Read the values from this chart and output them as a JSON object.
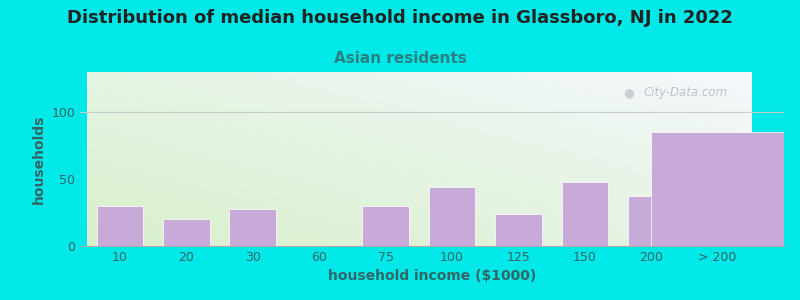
{
  "title": "Distribution of median household income in Glassboro, NJ in 2022",
  "subtitle": "Asian residents",
  "xlabel": "household income ($1000)",
  "ylabel": "households",
  "title_fontsize": 13,
  "subtitle_fontsize": 11,
  "label_fontsize": 10,
  "categories": [
    "10",
    "20",
    "30",
    "60",
    "75",
    "100",
    "125",
    "150",
    "200",
    "> 200"
  ],
  "values": [
    30,
    20,
    28,
    0,
    30,
    44,
    24,
    48,
    37,
    85
  ],
  "bar_color": "#c8aad8",
  "bar_edge_color": "#ffffff",
  "background_outer": "#00e8e8",
  "ylim": [
    0,
    130
  ],
  "yticks": [
    0,
    50,
    100
  ],
  "watermark": "City-Data.com",
  "title_color": "#222222",
  "subtitle_color": "#2a8080",
  "axis_label_color": "#336666",
  "tick_color": "#336666",
  "gridline_color": "#cccccc",
  "plot_bg_color_bottom_left": "#d8f0cc",
  "plot_bg_color_top_right": "#f0f8fc"
}
